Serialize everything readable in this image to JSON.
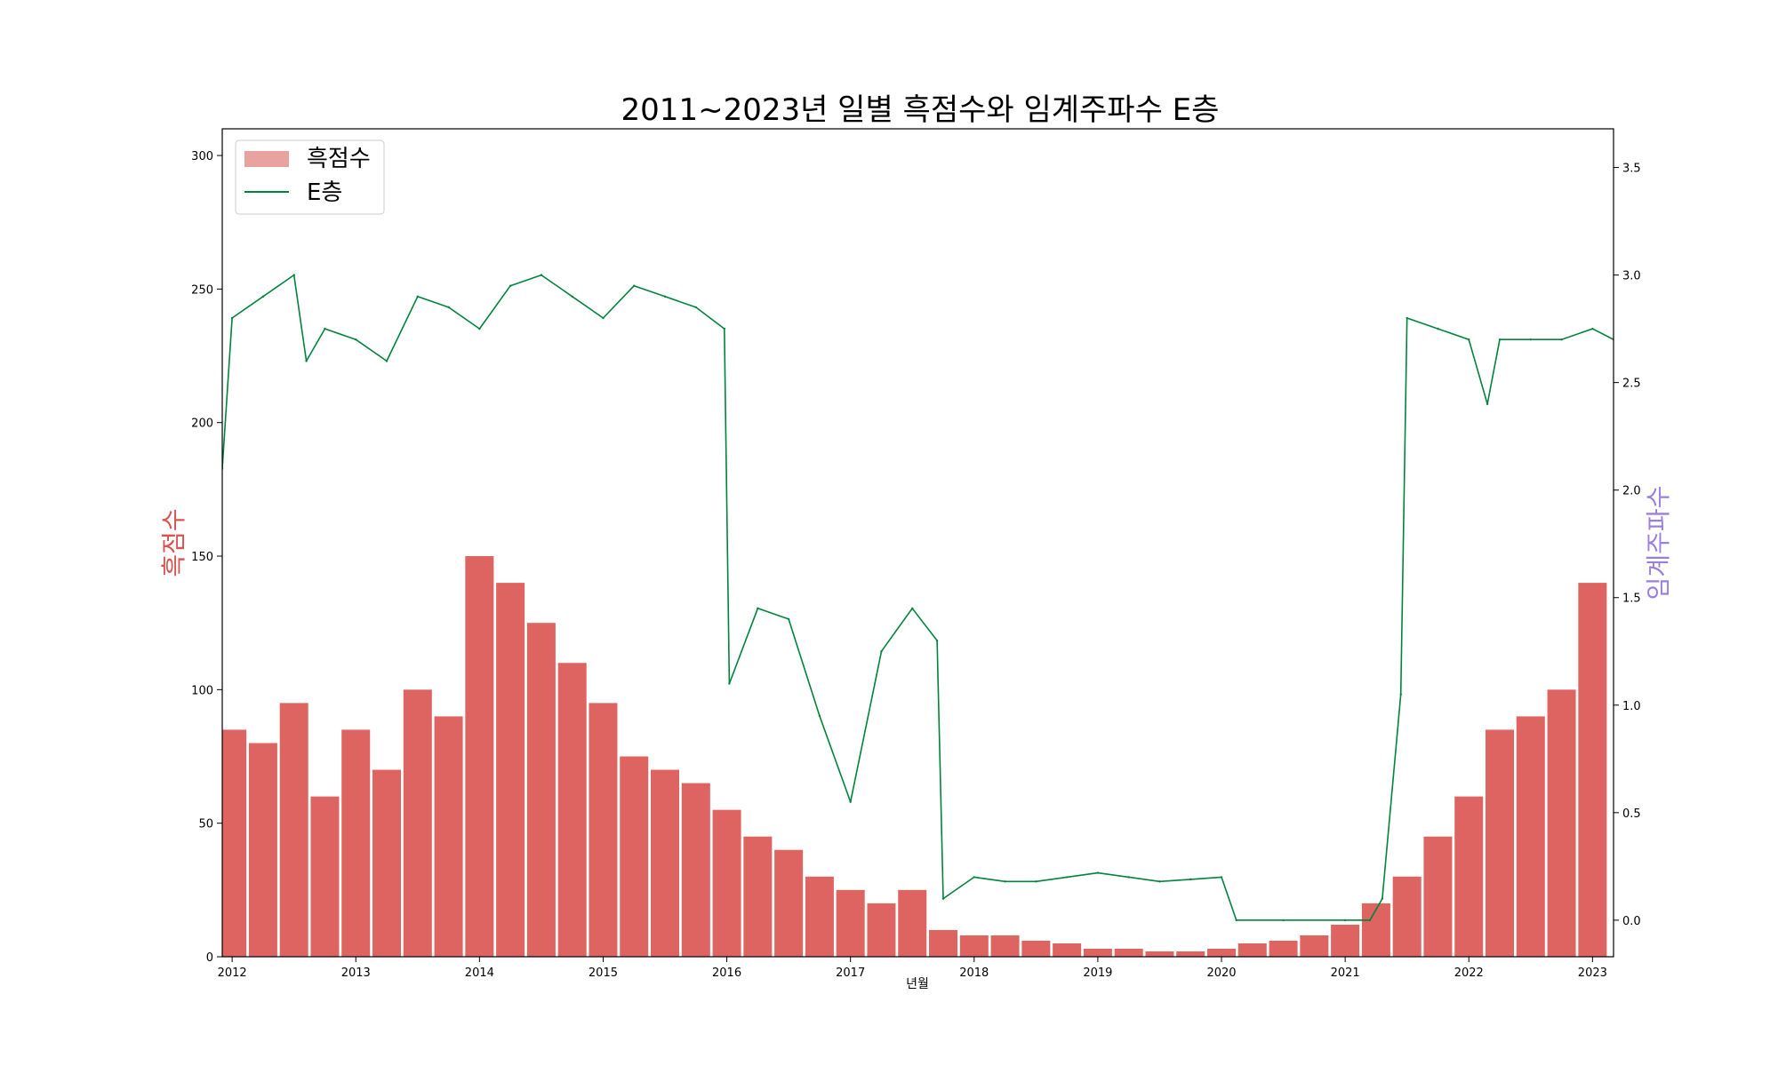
{
  "chart_data": {
    "type": "bar+line",
    "title": "2011~2023년 일별 흑점수와 임계주파수 E층",
    "xlabel": "년월",
    "ylabel_left": "흑점수",
    "ylabel_right": "임계주파수",
    "ylim_left": [
      0,
      310
    ],
    "ylim_right": [
      -0.17,
      3.68
    ],
    "yticks_left": [
      0,
      50,
      100,
      150,
      200,
      250,
      300
    ],
    "yticks_right": [
      0.0,
      0.5,
      1.0,
      1.5,
      2.0,
      2.5,
      3.0,
      3.5
    ],
    "yticks_right_labels": [
      "0.0",
      "0.5",
      "1.0",
      "1.5",
      "2.0",
      "2.5",
      "3.0",
      "3.5"
    ],
    "x_range": [
      2011.92,
      2023.17
    ],
    "xticks": [
      2012,
      2013,
      2014,
      2015,
      2016,
      2017,
      2018,
      2019,
      2020,
      2021,
      2022,
      2023
    ],
    "xticks_labels": [
      "2012",
      "2013",
      "2014",
      "2015",
      "2016",
      "2017",
      "2018",
      "2019",
      "2020",
      "2021",
      "2022",
      "2023"
    ],
    "legend": {
      "position": "top-left",
      "entries": [
        "흑점수",
        "E층"
      ]
    },
    "colors": {
      "sunspot": "#d9534f",
      "sunspot_legend": "#e8a2a0",
      "e_layer": "#00843d",
      "left_label": "#d9534f",
      "right_label": "#9b7fe0"
    },
    "series": [
      {
        "name": "흑점수",
        "kind": "bar",
        "x": [
          2012.0,
          2012.25,
          2012.5,
          2012.75,
          2013.0,
          2013.25,
          2013.5,
          2013.75,
          2014.0,
          2014.25,
          2014.5,
          2014.75,
          2015.0,
          2015.25,
          2015.5,
          2015.75,
          2016.0,
          2016.25,
          2016.5,
          2016.75,
          2017.0,
          2017.25,
          2017.5,
          2017.75,
          2018.0,
          2018.25,
          2018.5,
          2018.75,
          2019.0,
          2019.25,
          2019.5,
          2019.75,
          2020.0,
          2020.25,
          2020.5,
          2020.75,
          2021.0,
          2021.25,
          2021.5,
          2021.75,
          2022.0,
          2022.25,
          2022.5,
          2022.75,
          2023.0
        ],
        "values": [
          85,
          80,
          95,
          60,
          85,
          70,
          100,
          90,
          150,
          140,
          125,
          110,
          95,
          75,
          70,
          65,
          55,
          45,
          40,
          30,
          25,
          20,
          25,
          10,
          8,
          8,
          6,
          5,
          3,
          3,
          2,
          2,
          3,
          5,
          6,
          8,
          12,
          20,
          30,
          45,
          60,
          85,
          90,
          100,
          140
        ]
      },
      {
        "name": "E층",
        "kind": "line",
        "x": [
          2011.92,
          2012.0,
          2012.25,
          2012.5,
          2012.6,
          2012.75,
          2013.0,
          2013.25,
          2013.5,
          2013.75,
          2014.0,
          2014.25,
          2014.5,
          2014.75,
          2015.0,
          2015.25,
          2015.5,
          2015.75,
          2015.98,
          2016.02,
          2016.25,
          2016.5,
          2016.75,
          2017.0,
          2017.25,
          2017.5,
          2017.7,
          2017.75,
          2018.0,
          2018.25,
          2018.5,
          2018.75,
          2019.0,
          2019.25,
          2019.5,
          2019.75,
          2020.0,
          2020.12,
          2020.5,
          2021.0,
          2021.2,
          2021.3,
          2021.45,
          2021.5,
          2021.75,
          2022.0,
          2022.15,
          2022.25,
          2022.5,
          2022.75,
          2023.0,
          2023.17
        ],
        "values": [
          2.1,
          2.8,
          2.9,
          3.0,
          2.6,
          2.75,
          2.7,
          2.6,
          2.9,
          2.85,
          2.75,
          2.95,
          3.0,
          2.9,
          2.8,
          2.95,
          2.9,
          2.85,
          2.75,
          1.1,
          1.45,
          1.4,
          0.95,
          0.55,
          1.25,
          1.45,
          1.3,
          0.1,
          0.2,
          0.18,
          0.18,
          0.2,
          0.22,
          0.2,
          0.18,
          0.19,
          0.2,
          0.0,
          0.0,
          0.0,
          0.0,
          0.1,
          1.05,
          2.8,
          2.75,
          2.7,
          2.4,
          2.7,
          2.7,
          2.7,
          2.75,
          2.7
        ]
      }
    ]
  }
}
